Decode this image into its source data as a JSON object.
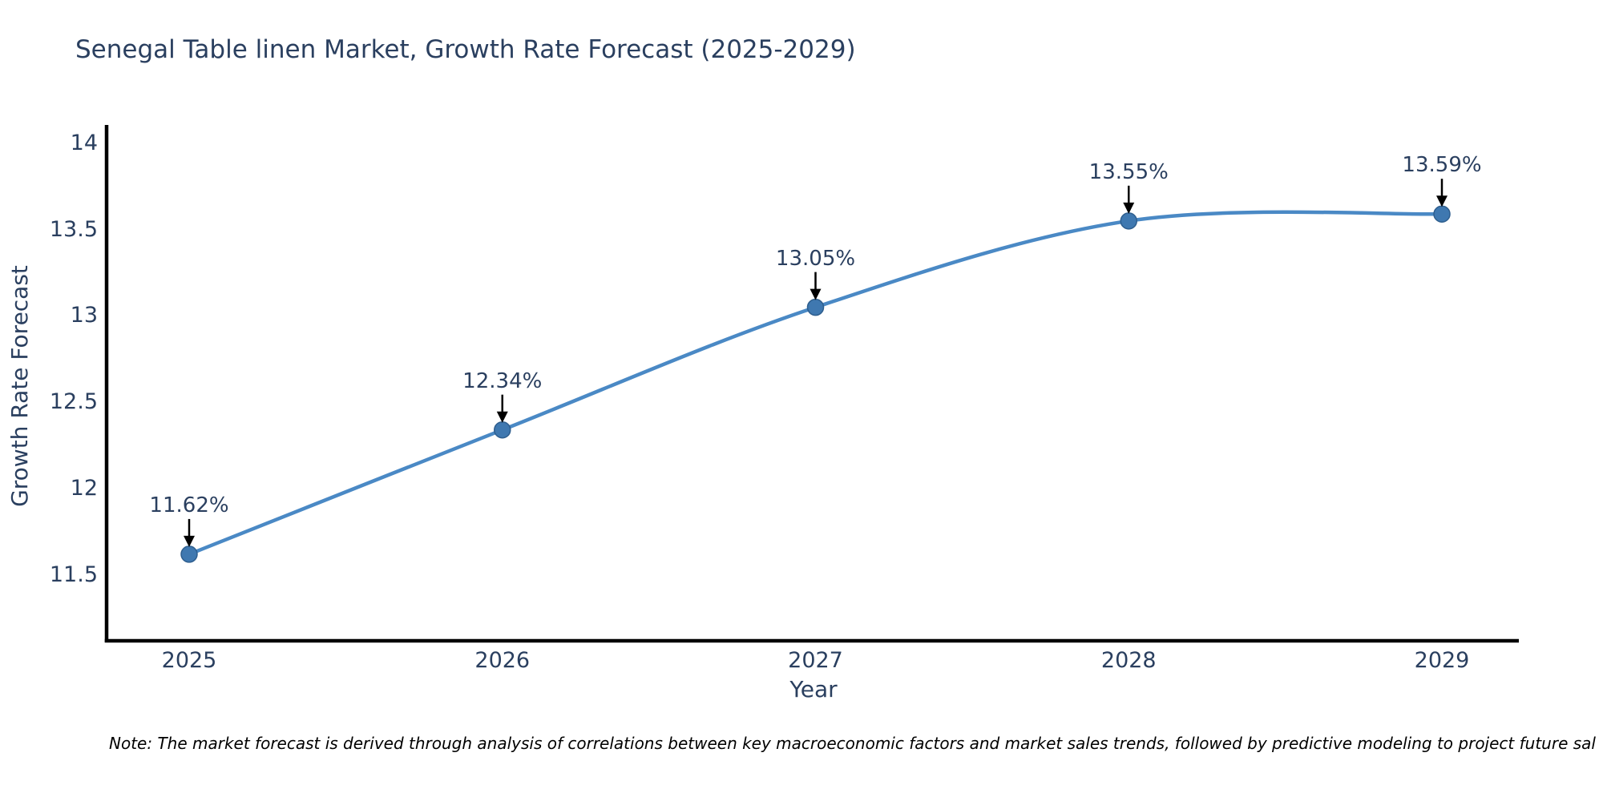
{
  "page": {
    "background": "#ffffff"
  },
  "chart_data": {
    "type": "line",
    "title": "Senegal Table linen Market, Growth Rate Forecast (2025-2029)",
    "xlabel": "Year",
    "ylabel": "Growth Rate Forecast",
    "x": [
      2025,
      2026,
      2027,
      2028,
      2029
    ],
    "values": [
      11.62,
      12.34,
      13.05,
      13.55,
      13.59
    ],
    "point_labels": [
      "11.62%",
      "12.34%",
      "13.05%",
      "13.55%",
      "13.59%"
    ],
    "x_tick_labels": [
      "2025",
      "2026",
      "2027",
      "2028",
      "2029"
    ],
    "y_tick_values": [
      14,
      13.5,
      13,
      12.5,
      12,
      11.5
    ],
    "y_tick_labels": [
      "14",
      "13.5",
      "13",
      "12.5",
      "12",
      "11.5"
    ],
    "ylim": [
      11.1,
      14.1
    ],
    "grid": false,
    "legend": "none",
    "line_smoothing": "spline",
    "colors": {
      "line": "#4a89c5",
      "marker": "#3f78b0",
      "marker_outline": "#2e5e8e",
      "axis_spine": "#000000",
      "text": "#2a3f5f",
      "annotation_arrow": "#000000",
      "note_text": "#000000"
    },
    "note": "Note: The market forecast is derived through analysis of correlations between key macroeconomic factors and market sales trends, followed by predictive modeling to project future sal"
  }
}
